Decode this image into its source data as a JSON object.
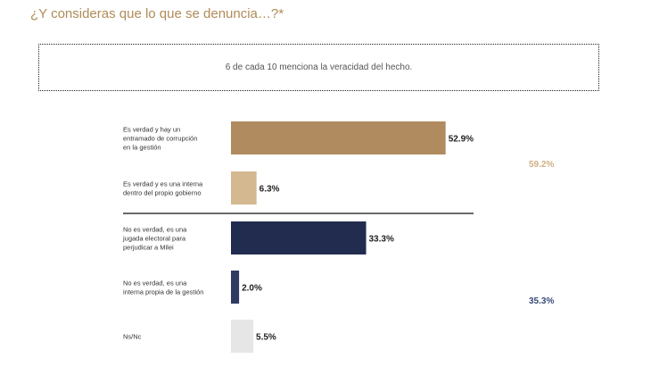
{
  "header": {
    "title": "¿Y consideras que lo que se denuncia…?*",
    "callout": "6 de cada 10 menciona la veracidad del hecho."
  },
  "colors": {
    "title": "#b08b57",
    "brown": "#b08b60",
    "tan": "#d4b890",
    "navy": "#212c4e",
    "gray": "#e6e6e6",
    "group_true": "#cfae84",
    "group_false": "#3a4a78"
  },
  "chart_data": {
    "type": "bar",
    "orientation": "horizontal",
    "categories": [
      [
        "Es verdad y hay un",
        "entramado de corrupción",
        "en la gestión"
      ],
      [
        "Es verdad y es una interna",
        "dentro del propio gobierno"
      ],
      [
        "No es verdad, es una",
        "jugada electoral para",
        "perjudicar a Milei"
      ],
      [
        "No es verdad, es una",
        "interna propia de la gestión"
      ],
      [
        "Ns/Nc"
      ]
    ],
    "values": [
      52.9,
      6.3,
      33.3,
      2.0,
      5.5
    ],
    "value_labels": [
      "52.9%",
      "6.3%",
      "33.3%",
      "2.0%",
      "5.5%"
    ],
    "bar_colors": [
      "#b08b60",
      "#d4b890",
      "#212c4e",
      "#2e3a62",
      "#e6e6e6"
    ],
    "groups": [
      {
        "label": "59.2%",
        "color": "#cfae84"
      },
      {
        "label": "35.3%",
        "color": "#3a4a78"
      }
    ],
    "xlim": [
      0,
      100
    ],
    "grid": false,
    "legend": "none"
  }
}
